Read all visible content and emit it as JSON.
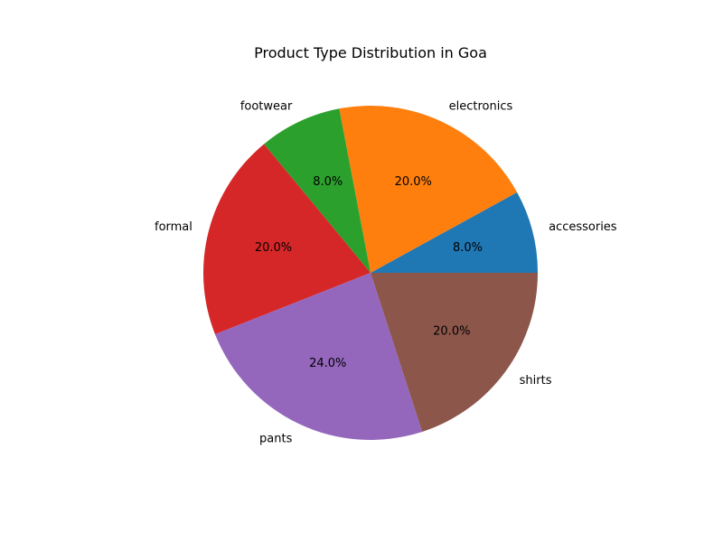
{
  "chart_data": {
    "type": "pie",
    "title": "Product Type Distribution in Goa",
    "start_angle_deg": 0,
    "direction": "counterclockwise",
    "slices": [
      {
        "label": "accessories",
        "value": 8.0,
        "pct_text": "8.0%",
        "color": "#1f77b4"
      },
      {
        "label": "electronics",
        "value": 20.0,
        "pct_text": "20.0%",
        "color": "#ff7f0e"
      },
      {
        "label": "footwear",
        "value": 8.0,
        "pct_text": "8.0%",
        "color": "#2ca02c"
      },
      {
        "label": "formal",
        "value": 20.0,
        "pct_text": "20.0%",
        "color": "#d62728"
      },
      {
        "label": "pants",
        "value": 24.0,
        "pct_text": "24.0%",
        "color": "#9467bd"
      },
      {
        "label": "shirts",
        "value": 20.0,
        "pct_text": "20.0%",
        "color": "#8c564b"
      }
    ]
  }
}
